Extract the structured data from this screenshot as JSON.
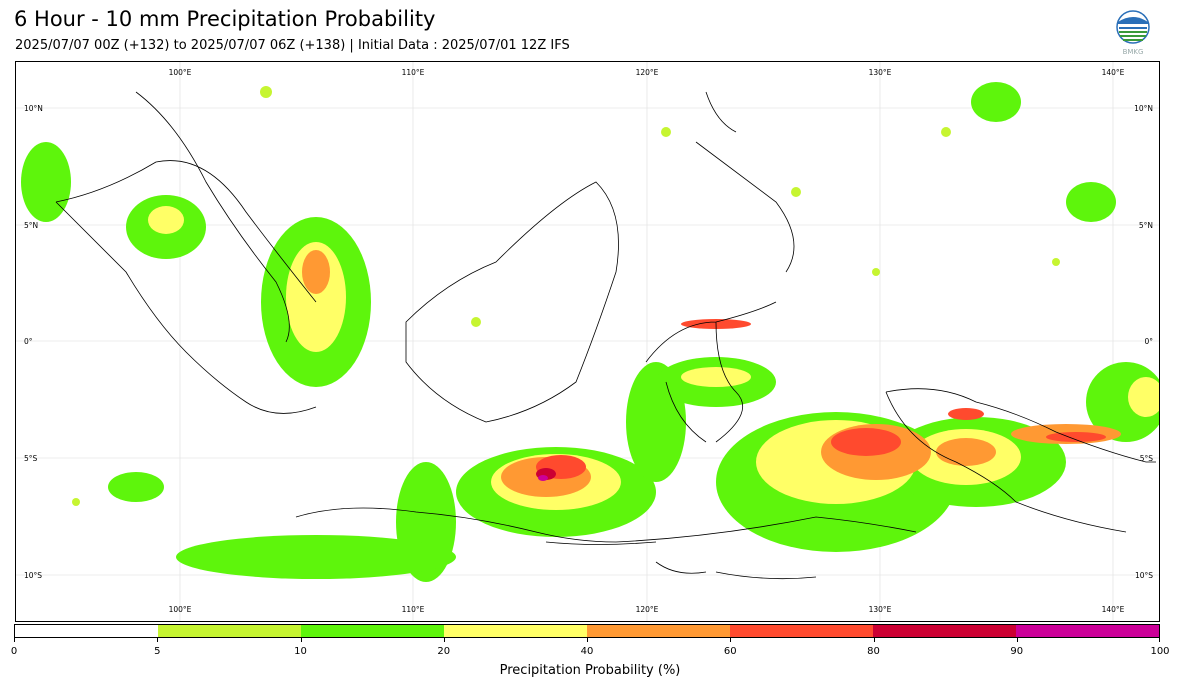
{
  "title": "6 Hour - 10 mm Precipitation Probability",
  "subtitle": "2025/07/07 00Z (+132) to 2025/07/07 06Z (+138) | Initial Data : 2025/07/01 12Z IFS",
  "logo_text": "BMKG",
  "map": {
    "lon_labels_top": [
      "100°E",
      "110°E",
      "120°E",
      "130°E",
      "140°E"
    ],
    "lon_labels_bottom": [
      "100°E",
      "110°E",
      "120°E",
      "130°E",
      "140°E"
    ],
    "lat_labels_left": [
      "10°N",
      "5°N",
      "0°",
      "5°S",
      "10°S"
    ],
    "lat_labels_right": [
      "10°N",
      "5°N",
      "0°",
      "5°S",
      "10°S"
    ]
  },
  "colorbar": {
    "colors": [
      "#ffffff",
      "#c6f531",
      "#5ef50c",
      "#ffff66",
      "#ff9933",
      "#ff4a2e",
      "#cc0033",
      "#cc0099"
    ],
    "tick_labels": [
      "0",
      "5",
      "10",
      "20",
      "40",
      "60",
      "80",
      "90",
      "100"
    ],
    "label": "Precipitation Probability (%)"
  }
}
